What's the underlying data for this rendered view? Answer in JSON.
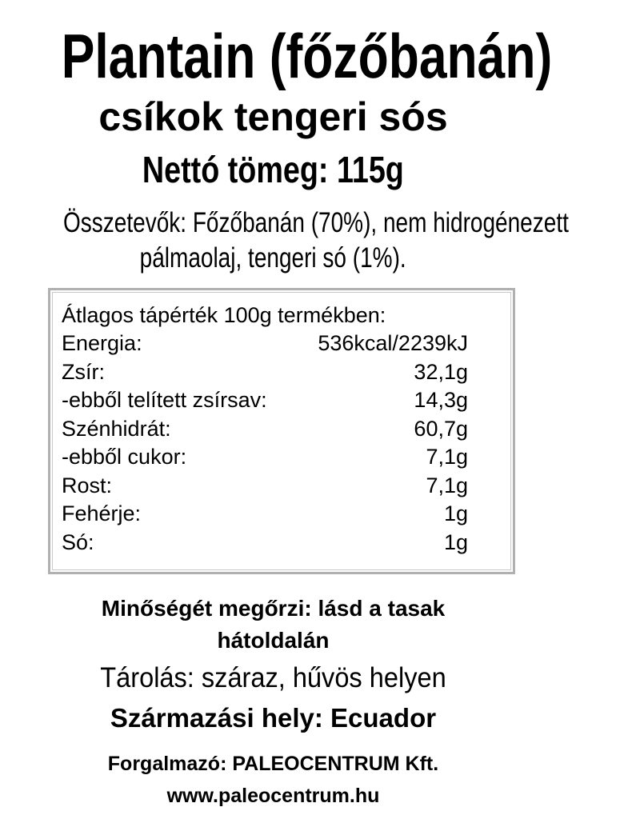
{
  "title": "Plantain (főzőbanán)",
  "subtitle": "csíkok tengeri sós",
  "net_weight": "Nettó tömeg: 115g",
  "ingredients": {
    "line1": "Összetevők: Főzőbanán (70%), nem hidrogénezett",
    "line2": "pálmaolaj, tengeri só (1%)."
  },
  "nutrition": {
    "heading": "Átlagos tápérték 100g termékben:",
    "rows": [
      {
        "label": "Energia:",
        "value": "536kcal/2239kJ"
      },
      {
        "label": "Zsír:",
        "value": "32,1g"
      },
      {
        "label": "-ebből telített zsírsav:",
        "value": "14,3g"
      },
      {
        "label": "Szénhidrát:",
        "value": "60,7g"
      },
      {
        "label": "-ebből cukor:",
        "value": "7,1g"
      },
      {
        "label": "Rost:",
        "value": "7,1g"
      },
      {
        "label": "Fehérje:",
        "value": "1g"
      },
      {
        "label": "Só:",
        "value": "1g"
      }
    ]
  },
  "best_before": {
    "line1": "Minőségét megőrzi: lásd a tasak",
    "line2": "hátoldalán"
  },
  "storage": "Tárolás: száraz, hűvös helyen",
  "origin": "Származási hely: Ecuador",
  "distributor": "Forgalmazó: PALEOCENTRUM Kft.",
  "website": "www.paleocentrum.hu"
}
